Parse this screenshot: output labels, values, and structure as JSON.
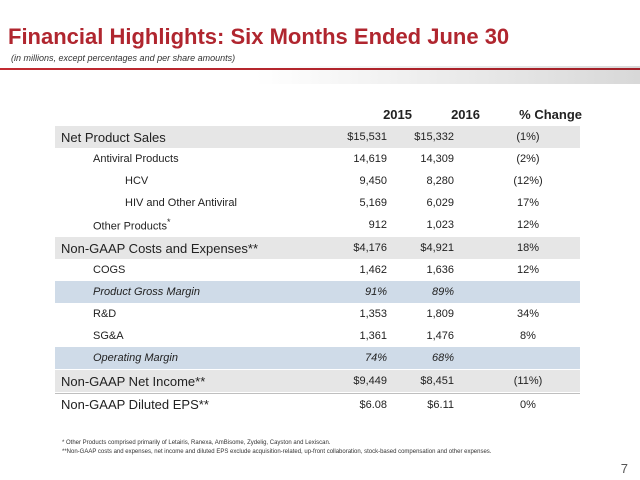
{
  "title": "Financial Highlights:  Six Months Ended June 30",
  "subtitle": "(in millions, except percentages and per share amounts)",
  "columns": {
    "y2015": "2015",
    "y2016": "2016",
    "pct": "% Change"
  },
  "rows": [
    {
      "label": "Net Product Sales",
      "v2015": "$15,531",
      "v2016": "$15,332",
      "pct": "(1%)"
    },
    {
      "label": "Antiviral Products",
      "v2015": "14,619",
      "v2016": "14,309",
      "pct": "(2%)"
    },
    {
      "label": "HCV",
      "v2015": "9,450",
      "v2016": "8,280",
      "pct": "(12%)"
    },
    {
      "label": "HIV and Other Antiviral",
      "v2015": "5,169",
      "v2016": "6,029",
      "pct": "17%"
    },
    {
      "label": "Other Products",
      "label_suffix": "*",
      "v2015": "912",
      "v2016": "1,023",
      "pct": "12%"
    },
    {
      "label": "Non-GAAP Costs and Expenses**",
      "v2015": "$4,176",
      "v2016": "$4,921",
      "pct": "18%"
    },
    {
      "label": "COGS",
      "v2015": "1,462",
      "v2016": "1,636",
      "pct": "12%"
    },
    {
      "label": "Product Gross Margin",
      "v2015": "91%",
      "v2016": "89%",
      "pct": ""
    },
    {
      "label": "R&D",
      "v2015": "1,353",
      "v2016": "1,809",
      "pct": "34%"
    },
    {
      "label": "SG&A",
      "v2015": "1,361",
      "v2016": "1,476",
      "pct": "8%"
    },
    {
      "label": "Operating Margin",
      "v2015": "74%",
      "v2016": "68%",
      "pct": ""
    },
    {
      "label": "Non-GAAP Net Income**",
      "v2015": "$9,449",
      "v2016": "$8,451",
      "pct": "(11%)"
    },
    {
      "label": "Non-GAAP Diluted EPS**",
      "v2015": "$6.08",
      "v2016": "$6.11",
      "pct": "0%"
    }
  ],
  "footnotes": [
    "* Other Products comprised primarily of Letairis, Ranexa, AmBisome, Zydelig, Cayston and Lexiscan.",
    "**Non-GAAP costs and expenses, net income and diluted EPS exclude acquisition-related, up-front collaboration, stock-based compensation and other expenses."
  ],
  "page_number": "7",
  "colors": {
    "title": "#b0262f",
    "gray_band": "#e6e6e6",
    "blue_band": "#cfdbe8"
  }
}
